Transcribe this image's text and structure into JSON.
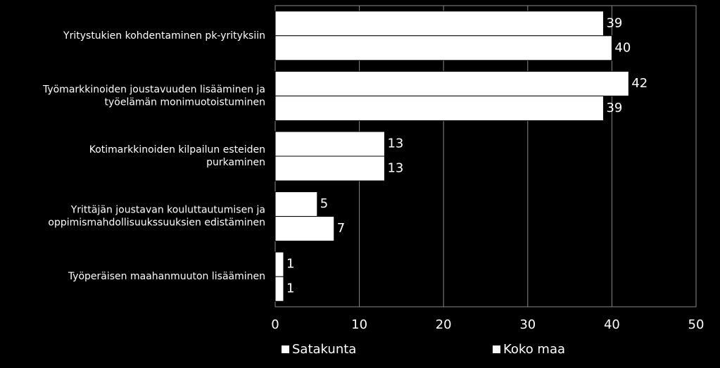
{
  "chart_data": {
    "type": "bar",
    "orientation": "horizontal",
    "categories": [
      [
        "Yritystukien kohdentaminen pk-yrityksiin"
      ],
      [
        "Työmarkkinoiden joustavuuden lisääminen ja",
        "työelämän monimuotoistuminen"
      ],
      [
        "Kotimarkkinoiden kilpailun esteiden",
        "purkaminen"
      ],
      [
        "Yrittäjän joustavan kouluttautumisen ja",
        "oppimismahdollisuukssuuksien edistäminen"
      ],
      [
        "Työperäisen maahanmuuton lisääminen"
      ]
    ],
    "series": [
      {
        "name": "Satakunta",
        "color": "#ffffff",
        "values": [
          39,
          42,
          13,
          5,
          1
        ]
      },
      {
        "name": "Koko maa",
        "color": "#ffffff",
        "values": [
          40,
          39,
          13,
          7,
          1
        ]
      }
    ],
    "xlim": [
      0,
      50
    ],
    "xticks": [
      0,
      10,
      20,
      30,
      40,
      50
    ],
    "grid": true,
    "legend": "bottom"
  }
}
